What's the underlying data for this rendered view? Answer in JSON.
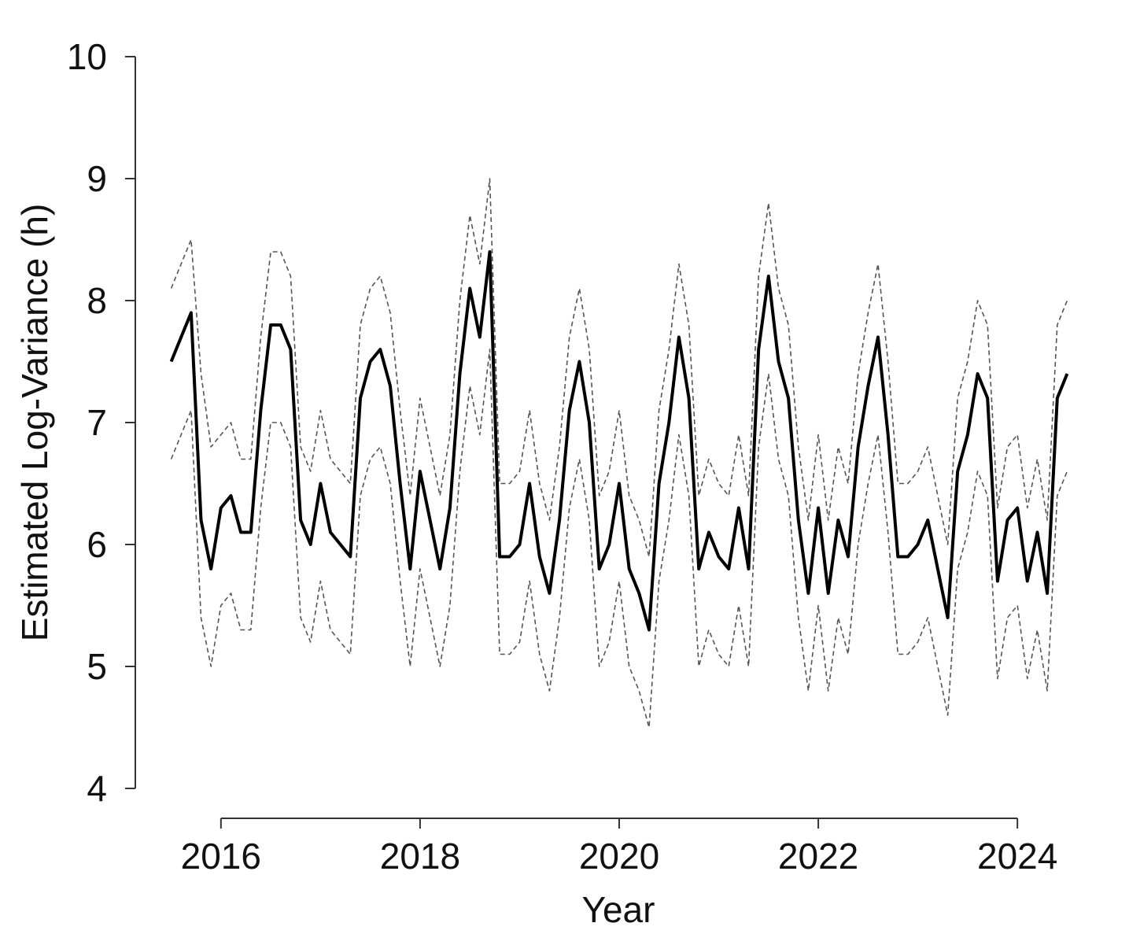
{
  "chart_data": {
    "type": "line",
    "x_label": "Year",
    "y_label": "Estimated Log-Variance (h)",
    "x": [
      2015.5,
      2015.6,
      2015.7,
      2015.8,
      2015.9,
      2016.0,
      2016.1,
      2016.2,
      2016.3,
      2016.4,
      2016.5,
      2016.6,
      2016.7,
      2016.8,
      2016.9,
      2017.0,
      2017.1,
      2017.2,
      2017.3,
      2017.4,
      2017.5,
      2017.6,
      2017.7,
      2017.8,
      2017.9,
      2018.0,
      2018.1,
      2018.2,
      2018.3,
      2018.4,
      2018.5,
      2018.6,
      2018.7,
      2018.8,
      2018.9,
      2019.0,
      2019.1,
      2019.2,
      2019.3,
      2019.4,
      2019.5,
      2019.6,
      2019.7,
      2019.8,
      2019.9,
      2020.0,
      2020.1,
      2020.2,
      2020.3,
      2020.4,
      2020.5,
      2020.6,
      2020.7,
      2020.8,
      2020.9,
      2021.0,
      2021.1,
      2021.2,
      2021.3,
      2021.4,
      2021.5,
      2021.6,
      2021.7,
      2021.8,
      2021.9,
      2022.0,
      2022.1,
      2022.2,
      2022.3,
      2022.4,
      2022.5,
      2022.6,
      2022.7,
      2022.8,
      2022.9,
      2023.0,
      2023.1,
      2023.2,
      2023.3,
      2023.4,
      2023.5,
      2023.6,
      2023.7,
      2023.8,
      2023.9,
      2024.0,
      2024.1,
      2024.2,
      2024.3,
      2024.4,
      2024.5
    ],
    "series": [
      {
        "color": "#000000",
        "dash": "solid",
        "values": [
          7.5,
          7.7,
          7.9,
          6.2,
          5.8,
          6.3,
          6.4,
          6.1,
          6.1,
          7.1,
          7.8,
          7.8,
          7.6,
          6.2,
          6.0,
          6.5,
          6.1,
          6.0,
          5.9,
          7.2,
          7.5,
          7.6,
          7.3,
          6.5,
          5.8,
          6.6,
          6.2,
          5.8,
          6.3,
          7.4,
          8.1,
          7.7,
          8.4,
          5.9,
          5.9,
          6.0,
          6.5,
          5.9,
          5.6,
          6.2,
          7.1,
          7.5,
          7.0,
          5.8,
          6.0,
          6.5,
          5.8,
          5.6,
          5.3,
          6.5,
          7.0,
          7.7,
          7.2,
          5.8,
          6.1,
          5.9,
          5.8,
          6.3,
          5.8,
          7.6,
          8.2,
          7.5,
          7.2,
          6.2,
          5.6,
          6.3,
          5.6,
          6.2,
          5.9,
          6.8,
          7.3,
          7.7,
          6.9,
          5.9,
          5.9,
          6.0,
          6.2,
          5.8,
          5.4,
          6.6,
          6.9,
          7.4,
          7.2,
          5.7,
          6.2,
          6.3,
          5.7,
          6.1,
          5.6,
          7.2,
          7.4
        ]
      },
      {
        "color": "#555555",
        "dash": "dashed",
        "values": [
          8.1,
          8.3,
          8.5,
          7.4,
          6.8,
          6.9,
          7.0,
          6.7,
          6.7,
          7.7,
          8.4,
          8.4,
          8.2,
          6.8,
          6.6,
          7.1,
          6.7,
          6.6,
          6.5,
          7.8,
          8.1,
          8.2,
          7.9,
          7.1,
          6.4,
          7.2,
          6.8,
          6.4,
          6.9,
          8.0,
          8.7,
          8.3,
          9.0,
          6.5,
          6.5,
          6.6,
          7.1,
          6.5,
          6.2,
          6.8,
          7.7,
          8.1,
          7.6,
          6.4,
          6.6,
          7.1,
          6.4,
          6.2,
          5.9,
          7.1,
          7.6,
          8.3,
          7.8,
          6.4,
          6.7,
          6.5,
          6.4,
          6.9,
          6.4,
          8.2,
          8.8,
          8.1,
          7.8,
          6.8,
          6.2,
          6.9,
          6.2,
          6.8,
          6.5,
          7.4,
          7.9,
          8.3,
          7.5,
          6.5,
          6.5,
          6.6,
          6.8,
          6.4,
          6.0,
          7.2,
          7.5,
          8.0,
          7.8,
          6.3,
          6.8,
          6.9,
          6.3,
          6.7,
          6.2,
          7.8,
          8.0
        ]
      },
      {
        "color": "#555555",
        "dash": "dashed",
        "values": [
          6.7,
          6.9,
          7.1,
          5.4,
          5.0,
          5.5,
          5.6,
          5.3,
          5.3,
          6.3,
          7.0,
          7.0,
          6.8,
          5.4,
          5.2,
          5.7,
          5.3,
          5.2,
          5.1,
          6.4,
          6.7,
          6.8,
          6.5,
          5.7,
          5.0,
          5.8,
          5.4,
          5.0,
          5.5,
          6.6,
          7.3,
          6.9,
          7.6,
          5.1,
          5.1,
          5.2,
          5.7,
          5.1,
          4.8,
          5.4,
          6.3,
          6.7,
          6.2,
          5.0,
          5.2,
          5.7,
          5.0,
          4.8,
          4.5,
          5.7,
          6.2,
          6.9,
          6.4,
          5.0,
          5.3,
          5.1,
          5.0,
          5.5,
          5.0,
          6.8,
          7.4,
          6.7,
          6.4,
          5.4,
          4.8,
          5.5,
          4.8,
          5.4,
          5.1,
          6.0,
          6.5,
          6.9,
          6.1,
          5.1,
          5.1,
          5.2,
          5.4,
          5.0,
          4.6,
          5.8,
          6.1,
          6.6,
          6.4,
          4.9,
          5.4,
          5.5,
          4.9,
          5.3,
          4.8,
          6.4,
          6.6
        ]
      }
    ],
    "xlim": [
      2015.14,
      2024.86
    ],
    "xticks": [
      2016,
      2018,
      2020,
      2022,
      2024
    ],
    "ylim": [
      4,
      10
    ],
    "yticks": [
      4,
      5,
      6,
      7,
      8,
      9,
      10
    ]
  }
}
